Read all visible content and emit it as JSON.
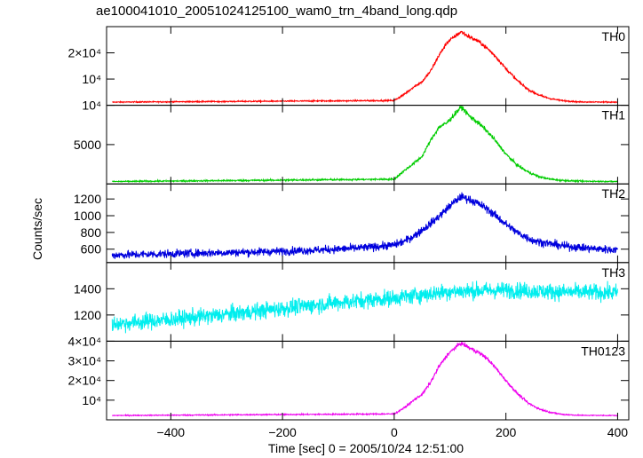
{
  "title": "ae100041010_20051024125100_wam0_trn_4band_long.qdp",
  "xlabel": "Time [sec] 0 = 2005/10/24 12:51:00",
  "ylabel": "Counts/sec",
  "chart_data": {
    "type": "line",
    "xlim": [
      -515,
      420
    ],
    "x_ticks": [
      -400,
      -200,
      0,
      200,
      400
    ],
    "x_tick_labels": [
      "−400",
      "−200",
      "0",
      "200",
      "400"
    ],
    "panels": [
      {
        "name": "TH0",
        "color": "#ff0000",
        "ylim": [
          0,
          30000
        ],
        "tick_values": [
          10000,
          20000
        ],
        "tick_labels": [
          "10⁴",
          "2×10⁴"
        ],
        "baseline": 1200,
        "noise": 120,
        "curve_x": [
          -505,
          0,
          20,
          35,
          50,
          65,
          80,
          95,
          110,
          120,
          135,
          150,
          165,
          180,
          200,
          220,
          240,
          260,
          280,
          300,
          330,
          400
        ],
        "curve_y": [
          1200,
          1800,
          4500,
          7000,
          9000,
          13000,
          19000,
          24000,
          26500,
          28000,
          26000,
          24500,
          22000,
          19000,
          14000,
          9500,
          6000,
          3800,
          2500,
          1800,
          1300,
          1200
        ]
      },
      {
        "name": "TH1",
        "color": "#00cc00",
        "ylim": [
          0,
          10000
        ],
        "tick_values": [
          5000,
          10000
        ],
        "tick_labels": [
          "5000",
          "10⁴"
        ],
        "baseline": 300,
        "noise": 50,
        "curve_x": [
          -505,
          0,
          20,
          35,
          50,
          65,
          80,
          95,
          110,
          120,
          135,
          150,
          165,
          180,
          200,
          220,
          240,
          260,
          280,
          300,
          330,
          400
        ],
        "curve_y": [
          300,
          600,
          1800,
          2600,
          3500,
          5500,
          7200,
          7800,
          9000,
          9800,
          8600,
          7800,
          6800,
          5600,
          3800,
          2400,
          1500,
          900,
          600,
          450,
          350,
          300
        ]
      },
      {
        "name": "TH2",
        "color": "#0000dd",
        "ylim": [
          440,
          1380
        ],
        "tick_values": [
          600,
          800,
          1000,
          1200
        ],
        "tick_labels": [
          "600",
          "800",
          "1000",
          "1200"
        ],
        "baseline": 0,
        "noise": 35,
        "curve_x": [
          -505,
          -400,
          -300,
          -200,
          -100,
          -50,
          0,
          20,
          40,
          60,
          80,
          100,
          120,
          140,
          160,
          180,
          200,
          220,
          250,
          300,
          350,
          400
        ],
        "curve_y": [
          530,
          545,
          560,
          575,
          600,
          620,
          650,
          700,
          780,
          880,
          990,
          1120,
          1230,
          1180,
          1110,
          1010,
          900,
          800,
          700,
          640,
          610,
          590
        ]
      },
      {
        "name": "TH3",
        "color": "#00eeee",
        "ylim": [
          1000,
          1600
        ],
        "tick_values": [
          1200,
          1400
        ],
        "tick_labels": [
          "1200",
          "1400"
        ],
        "baseline": 0,
        "noise": 45,
        "curve_x": [
          -505,
          -400,
          -300,
          -200,
          -100,
          0,
          100,
          200,
          300,
          400
        ],
        "curve_y": [
          1130,
          1165,
          1205,
          1250,
          1295,
          1330,
          1380,
          1390,
          1375,
          1370
        ]
      },
      {
        "name": "TH0123",
        "color": "#ee00ee",
        "ylim": [
          0,
          40000
        ],
        "tick_values": [
          10000,
          20000,
          30000,
          40000
        ],
        "tick_labels": [
          "10⁴",
          "2×10⁴",
          "3×10⁴",
          "4×10⁴"
        ],
        "baseline": 2200,
        "noise": 150,
        "curve_x": [
          -505,
          0,
          20,
          35,
          50,
          65,
          80,
          95,
          110,
          120,
          135,
          150,
          165,
          180,
          200,
          220,
          240,
          260,
          280,
          300,
          330,
          400
        ],
        "curve_y": [
          2200,
          3000,
          6500,
          10000,
          13000,
          19000,
          27000,
          33000,
          37000,
          39000,
          36500,
          34500,
          31500,
          27000,
          20000,
          13500,
          8500,
          5500,
          3800,
          2800,
          2300,
          2200
        ]
      }
    ]
  }
}
